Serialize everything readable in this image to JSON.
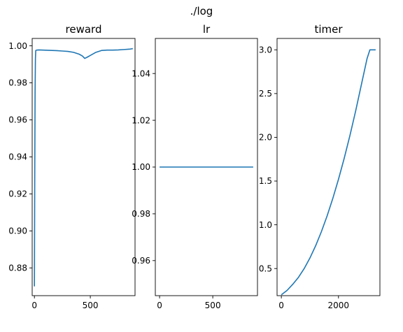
{
  "figure": {
    "suptitle": "./log"
  },
  "chart_data": [
    {
      "type": "line",
      "title": "reward",
      "xlabel": "",
      "ylabel": "",
      "color": "#1f77b4",
      "xlim": [
        -20,
        900
      ],
      "ylim": [
        0.865,
        1.004
      ],
      "xticks": [
        0,
        500
      ],
      "yticks": [
        0.88,
        0.9,
        0.92,
        0.94,
        0.96,
        0.98,
        1.0
      ],
      "xtick_labels": [
        "0",
        "500"
      ],
      "ytick_labels": [
        "0.88",
        "0.90",
        "0.92",
        "0.94",
        "0.96",
        "0.98",
        "1.00"
      ],
      "series": [
        {
          "x": [
            0,
            3,
            6,
            9,
            12,
            20,
            40,
            80,
            120,
            160,
            200,
            250,
            300,
            350,
            400,
            430,
            450,
            470,
            500,
            550,
            600,
            650,
            700,
            750,
            800,
            850,
            880
          ],
          "y": [
            0.87,
            0.93,
            0.975,
            0.993,
            0.9975,
            0.9977,
            0.9978,
            0.9977,
            0.9976,
            0.9975,
            0.9974,
            0.9972,
            0.997,
            0.9965,
            0.9955,
            0.9945,
            0.9932,
            0.9938,
            0.9948,
            0.9965,
            0.9975,
            0.9977,
            0.9977,
            0.9978,
            0.998,
            0.9982,
            0.9985
          ]
        }
      ]
    },
    {
      "type": "line",
      "title": "lr",
      "xlabel": "",
      "ylabel": "",
      "color": "#1f77b4",
      "xlim": [
        -40,
        920
      ],
      "ylim": [
        0.945,
        1.055
      ],
      "xticks": [
        0,
        500
      ],
      "yticks": [
        0.96,
        0.98,
        1.0,
        1.02,
        1.04
      ],
      "xtick_labels": [
        "0",
        "500"
      ],
      "ytick_labels": [
        "0.96",
        "0.98",
        "1.00",
        "1.02",
        "1.04"
      ],
      "series": [
        {
          "x": [
            0,
            880
          ],
          "y": [
            1.0,
            1.0
          ]
        }
      ]
    },
    {
      "type": "line",
      "title": "timer",
      "xlabel": "",
      "ylabel": "",
      "color": "#1f77b4",
      "xlim": [
        -150,
        3450
      ],
      "ylim": [
        0.19,
        3.13
      ],
      "xticks": [
        0,
        2000
      ],
      "yticks": [
        0.5,
        1.0,
        1.5,
        2.0,
        2.5,
        3.0
      ],
      "xtick_labels": [
        "0",
        "2000"
      ],
      "ytick_labels": [
        "0.5",
        "1.0",
        "1.5",
        "2.0",
        "2.5",
        "3.0"
      ],
      "series": [
        {
          "x": [
            0,
            200,
            400,
            600,
            800,
            1000,
            1200,
            1400,
            1600,
            1800,
            2000,
            2200,
            2400,
            2600,
            2800,
            3000,
            3100,
            3150,
            3200,
            3300
          ],
          "y": [
            0.2,
            0.25,
            0.32,
            0.4,
            0.5,
            0.62,
            0.76,
            0.92,
            1.1,
            1.3,
            1.52,
            1.76,
            2.02,
            2.3,
            2.6,
            2.9,
            3.0,
            3.0,
            3.0,
            3.0
          ]
        }
      ]
    }
  ]
}
